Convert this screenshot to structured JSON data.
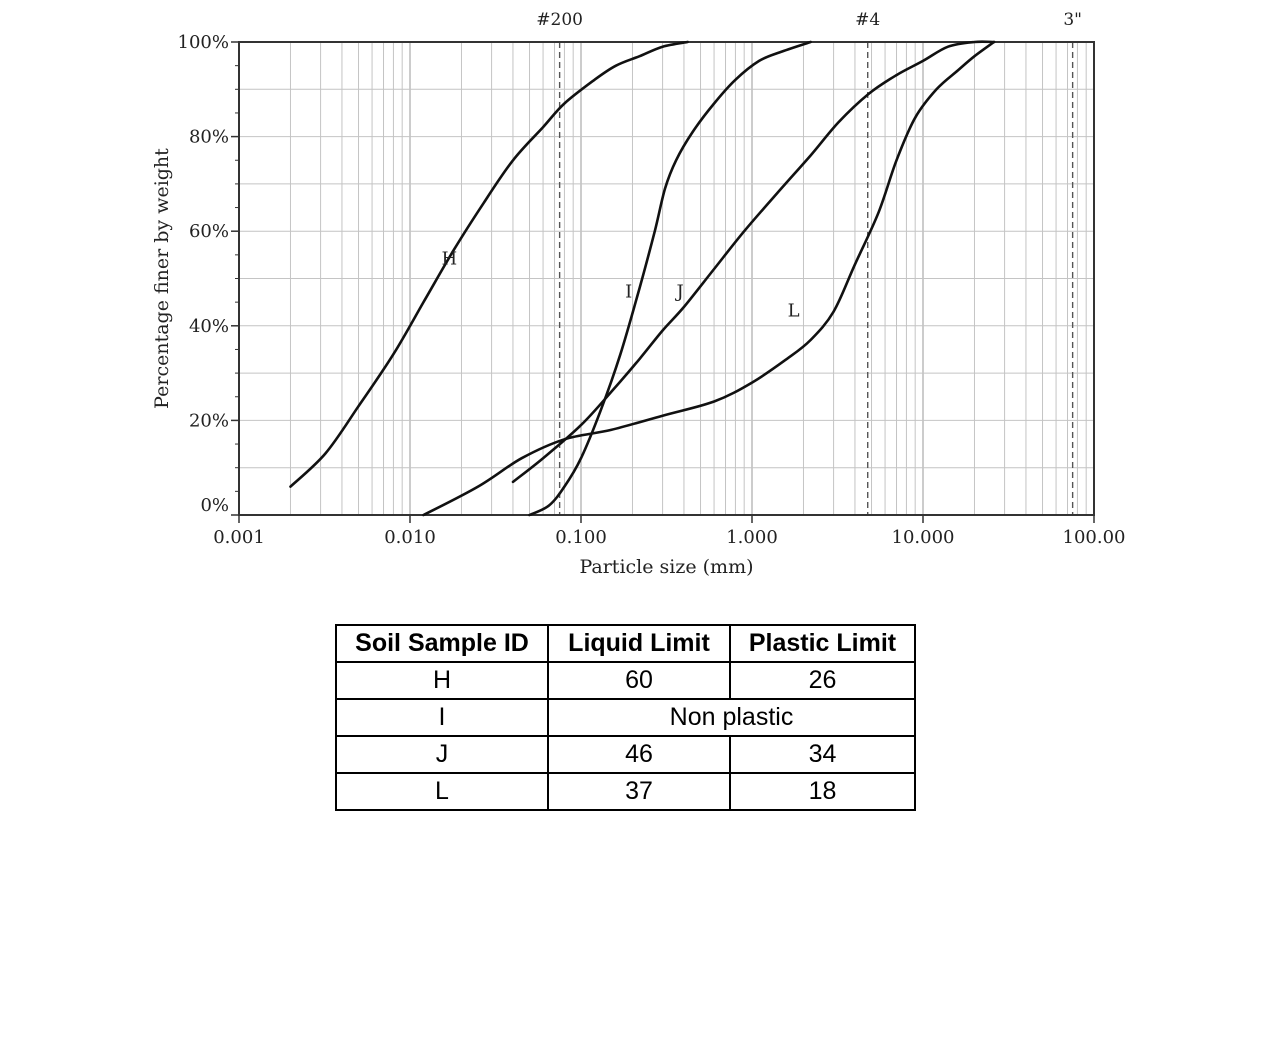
{
  "chart_data": {
    "type": "line",
    "x_scale": "log",
    "xlim": [
      0.001,
      100
    ],
    "ylim": [
      0,
      100
    ],
    "xlabel": "Particle size (mm)",
    "ylabel": "Percentage finer by weight",
    "x_ticks": [
      {
        "value": 0.001,
        "label": "0.001"
      },
      {
        "value": 0.01,
        "label": "0.010"
      },
      {
        "value": 0.1,
        "label": "0.100"
      },
      {
        "value": 1,
        "label": "1.000"
      },
      {
        "value": 10,
        "label": "10.000"
      },
      {
        "value": 100,
        "label": "100.00"
      }
    ],
    "y_ticks": [
      {
        "value": 0,
        "label": "0%"
      },
      {
        "value": 20,
        "label": "20%"
      },
      {
        "value": 40,
        "label": "40%"
      },
      {
        "value": 60,
        "label": "60%"
      },
      {
        "value": 80,
        "label": "80%"
      },
      {
        "value": 100,
        "label": "100%"
      }
    ],
    "sieves": [
      {
        "label": "#200",
        "size": 0.075
      },
      {
        "label": "#4",
        "size": 4.75
      },
      {
        "label": "3\"",
        "size": 75
      }
    ],
    "grid": true,
    "series": [
      {
        "name": "H",
        "x": [
          0.002,
          0.0032,
          0.005,
          0.008,
          0.012,
          0.018,
          0.027,
          0.04,
          0.06,
          0.08,
          0.12,
          0.16,
          0.22,
          0.3,
          0.42
        ],
        "y": [
          6,
          13,
          23,
          34,
          45,
          56,
          66,
          75,
          82,
          87,
          92,
          95,
          97,
          99,
          100
        ]
      },
      {
        "name": "I",
        "x": [
          0.05,
          0.065,
          0.08,
          0.1,
          0.13,
          0.17,
          0.22,
          0.27,
          0.31,
          0.36,
          0.45,
          0.6,
          0.8,
          1.1,
          1.5,
          2.2
        ],
        "y": [
          0,
          2,
          6,
          12,
          22,
          34,
          48,
          60,
          69,
          75,
          81,
          87,
          92,
          96,
          98,
          100
        ]
      },
      {
        "name": "J",
        "x": [
          0.04,
          0.06,
          0.1,
          0.15,
          0.22,
          0.3,
          0.4,
          0.6,
          0.9,
          1.4,
          2.2,
          3.2,
          4.8,
          7,
          10,
          14,
          20,
          26
        ],
        "y": [
          7,
          12,
          19,
          26,
          33,
          39,
          44,
          52,
          60,
          68,
          76,
          83,
          89,
          93,
          96,
          99,
          100,
          100
        ]
      },
      {
        "name": "L",
        "x": [
          0.012,
          0.025,
          0.045,
          0.08,
          0.15,
          0.3,
          0.6,
          1.0,
          1.6,
          2.2,
          3.0,
          4.0,
          5.5,
          7.0,
          9.0,
          12,
          16,
          20,
          26
        ],
        "y": [
          0,
          6,
          12,
          16,
          18,
          21,
          24,
          28,
          33,
          37,
          43,
          53,
          64,
          75,
          84,
          90,
          94,
          97,
          100
        ]
      }
    ],
    "curve_labels": [
      {
        "name": "H",
        "x": 0.017,
        "y": 53
      },
      {
        "name": "I",
        "x": 0.19,
        "y": 46
      },
      {
        "name": "J",
        "x": 0.38,
        "y": 46
      },
      {
        "name": "L",
        "x": 1.75,
        "y": 42
      }
    ]
  },
  "table": {
    "headers": [
      "Soil Sample ID",
      "Liquid Limit",
      "Plastic Limit"
    ],
    "rows": [
      {
        "id": "H",
        "ll": "60",
        "pl": "26"
      },
      {
        "id": "I",
        "merged": "Non plastic"
      },
      {
        "id": "J",
        "ll": "46",
        "pl": "34"
      },
      {
        "id": "L",
        "ll": "37",
        "pl": "18"
      }
    ]
  }
}
